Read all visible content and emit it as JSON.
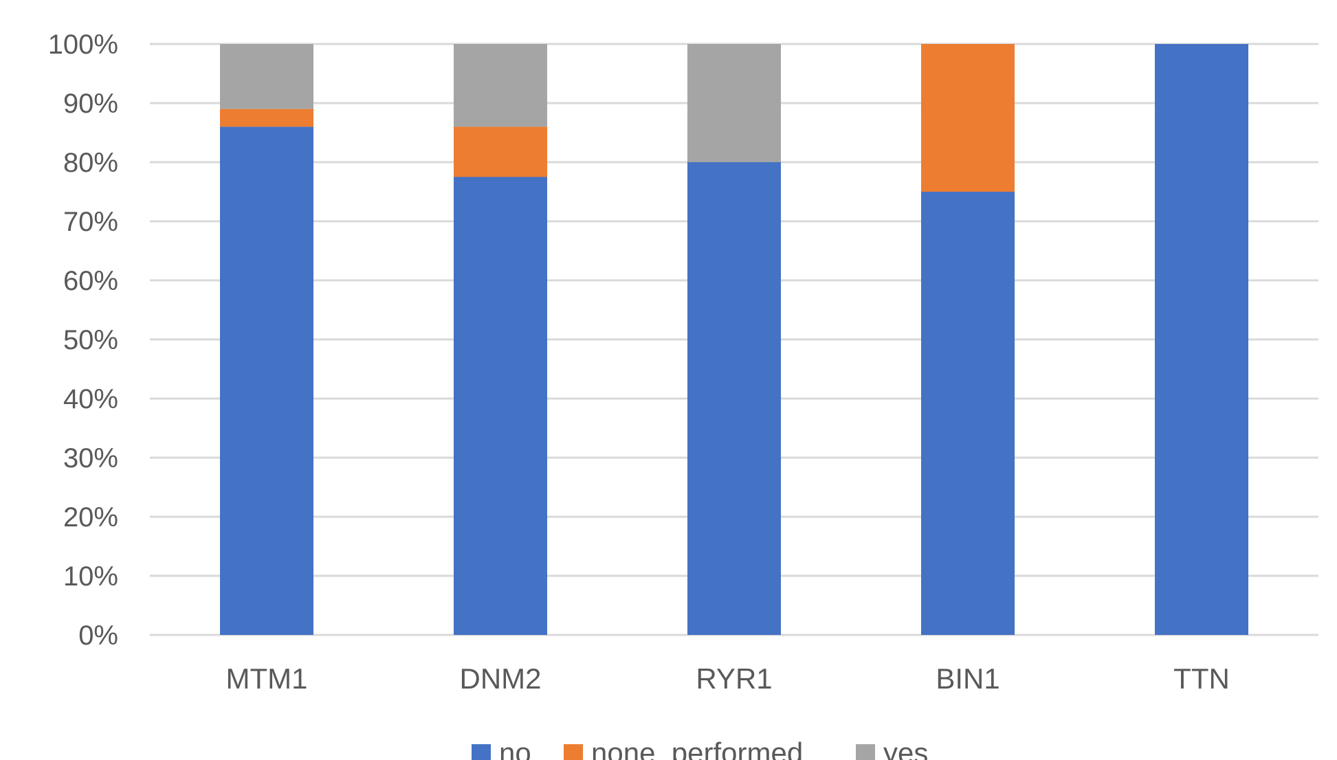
{
  "chart_data": {
    "type": "bar",
    "stacked": true,
    "percent_stacked": true,
    "categories": [
      "MTM1",
      "DNM2",
      "RYR1",
      "BIN1",
      "TTN"
    ],
    "series": [
      {
        "name": "no",
        "color": "#4472C4",
        "values": [
          86,
          77.5,
          80,
          75,
          100
        ]
      },
      {
        "name": "none  performed",
        "color": "#ED7D31",
        "values": [
          3,
          8.5,
          0,
          25,
          0
        ]
      },
      {
        "name": "yes",
        "color": "#A5A5A5",
        "values": [
          11,
          14,
          20,
          0,
          0
        ]
      }
    ],
    "y_ticks": [
      "0%",
      "10%",
      "20%",
      "30%",
      "40%",
      "50%",
      "60%",
      "70%",
      "80%",
      "90%",
      "100%"
    ],
    "ylim": [
      0,
      100
    ],
    "grid": true,
    "legend_position": "bottom",
    "title": "",
    "xlabel": "",
    "ylabel": ""
  }
}
